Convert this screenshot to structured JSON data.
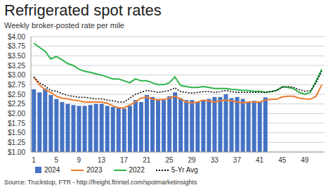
{
  "chart_data": {
    "type": "bar",
    "title": "Refrigerated spot rates",
    "subtitle": "Weekly broker-posted rate per mile",
    "source": "Source: Truckstop, FTR - http://freight.ftrintel.com/spotmarketinsights",
    "categories": [
      "1",
      null,
      null,
      null,
      "5",
      null,
      null,
      null,
      "9",
      null,
      null,
      null,
      "13",
      null,
      null,
      null,
      "17",
      null,
      null,
      null,
      "21",
      null,
      null,
      null,
      "25",
      null,
      null,
      null,
      "29",
      null,
      null,
      null,
      "33",
      null,
      null,
      null,
      "37",
      null,
      null,
      null,
      "41",
      null,
      null,
      null,
      "45",
      null,
      null,
      null,
      "49",
      null,
      null,
      null
    ],
    "series": [
      {
        "name": "2024",
        "type": "bar",
        "color": "#4472c4",
        "values": [
          2.63,
          2.55,
          2.65,
          2.48,
          2.38,
          2.3,
          2.25,
          2.22,
          2.2,
          2.2,
          2.22,
          2.25,
          2.25,
          2.2,
          2.17,
          2.15,
          2.13,
          2.2,
          2.35,
          2.3,
          2.48,
          2.43,
          2.38,
          2.35,
          2.45,
          2.55,
          2.4,
          2.35,
          2.35,
          2.3,
          2.35,
          2.38,
          2.43,
          2.43,
          2.5,
          2.4,
          2.43,
          2.38,
          2.3,
          2.33,
          2.3,
          2.42,
          null,
          null,
          null,
          null,
          null,
          null,
          null,
          null,
          null,
          null
        ]
      },
      {
        "name": "2023",
        "type": "line",
        "color": "#ed7d31",
        "line_style": "solid",
        "values": [
          2.95,
          2.75,
          2.62,
          2.55,
          2.45,
          2.4,
          2.38,
          2.35,
          2.33,
          2.3,
          2.3,
          2.3,
          2.3,
          2.27,
          2.2,
          2.15,
          2.15,
          2.22,
          2.3,
          2.4,
          2.43,
          2.38,
          2.35,
          2.37,
          2.4,
          2.45,
          2.38,
          2.3,
          2.28,
          2.3,
          2.35,
          2.33,
          2.3,
          2.33,
          2.35,
          2.33,
          2.3,
          2.28,
          2.3,
          2.3,
          2.3,
          2.35,
          2.37,
          2.37,
          2.43,
          2.45,
          2.45,
          2.4,
          2.38,
          2.37,
          2.45,
          2.75
        ]
      },
      {
        "name": "2022",
        "type": "line",
        "color": "#2db34a",
        "line_style": "solid",
        "values": [
          3.83,
          3.72,
          3.62,
          3.42,
          3.48,
          3.4,
          3.3,
          3.25,
          3.15,
          3.1,
          3.07,
          3.03,
          3.0,
          2.95,
          2.9,
          2.9,
          2.85,
          2.8,
          2.9,
          2.85,
          2.85,
          2.8,
          2.75,
          2.75,
          2.8,
          2.95,
          2.73,
          2.7,
          2.68,
          2.68,
          2.7,
          2.68,
          2.65,
          2.65,
          2.65,
          2.63,
          2.62,
          2.6,
          2.6,
          2.58,
          2.58,
          2.55,
          2.57,
          2.6,
          2.7,
          2.68,
          2.65,
          2.55,
          2.5,
          2.55,
          2.85,
          3.15
        ]
      },
      {
        "name": "5-Yr Avg",
        "type": "line",
        "color": "#000000",
        "line_style": "dotted",
        "values": [
          2.95,
          2.8,
          2.72,
          2.6,
          2.58,
          2.52,
          2.47,
          2.45,
          2.42,
          2.42,
          2.4,
          2.38,
          2.38,
          2.35,
          2.33,
          2.3,
          2.3,
          2.4,
          2.5,
          2.55,
          2.6,
          2.58,
          2.55,
          2.57,
          2.6,
          2.67,
          2.57,
          2.55,
          2.53,
          2.55,
          2.57,
          2.57,
          2.55,
          2.57,
          2.6,
          2.57,
          2.55,
          2.55,
          2.55,
          2.55,
          2.55,
          2.55,
          2.57,
          2.6,
          2.68,
          2.7,
          2.68,
          2.62,
          2.58,
          2.6,
          2.8,
          3.1
        ]
      }
    ],
    "ylim": [
      1,
      4
    ],
    "yticks": [
      {
        "value": 1,
        "label": "$1.00"
      },
      {
        "value": 1.25,
        "label": "$1.25"
      },
      {
        "value": 1.5,
        "label": "$1.50"
      },
      {
        "value": 1.75,
        "label": "$1.75"
      },
      {
        "value": 2,
        "label": "$2.00"
      },
      {
        "value": 2.25,
        "label": "$2.25"
      },
      {
        "value": 2.5,
        "label": "$2.50"
      },
      {
        "value": 2.75,
        "label": "$2.75"
      },
      {
        "value": 3,
        "label": "$3.00"
      },
      {
        "value": 3.25,
        "label": "$3.25"
      },
      {
        "value": 3.5,
        "label": "$3.50"
      },
      {
        "value": 3.75,
        "label": "$3.75"
      },
      {
        "value": 4,
        "label": "$4.00"
      }
    ],
    "grid": true,
    "legend": "bottom"
  }
}
